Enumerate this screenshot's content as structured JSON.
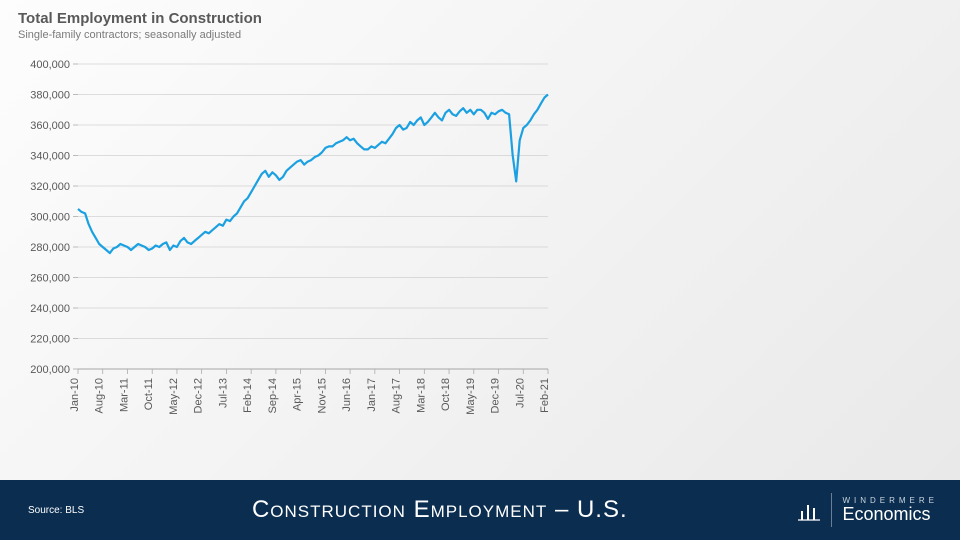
{
  "header": {
    "title": "Total Employment in Construction",
    "subtitle": "Single-family contractors; seasonally adjusted"
  },
  "footer": {
    "source": "Source: BLS",
    "title": "Construction Employment – U.S.",
    "brand_small": "WINDERMERE",
    "brand_big": "Economics"
  },
  "chart": {
    "type": "line",
    "line_color": "#1ba0e1",
    "line_width": 2.2,
    "background_color": "transparent",
    "grid_color": "#bfbfbf",
    "axis_color": "#a6a6a6",
    "label_color": "#595959",
    "label_fontsize": 11,
    "ylim": [
      200000,
      400000
    ],
    "ytick_step": 20000,
    "y_ticks": [
      "200,000",
      "220,000",
      "240,000",
      "260,000",
      "280,000",
      "300,000",
      "320,000",
      "340,000",
      "360,000",
      "380,000",
      "400,000"
    ],
    "x_labels": [
      "Jan-10",
      "Aug-10",
      "Mar-11",
      "Oct-11",
      "May-12",
      "Dec-12",
      "Jul-13",
      "Feb-14",
      "Sep-14",
      "Apr-15",
      "Nov-15",
      "Jun-16",
      "Jan-17",
      "Aug-17",
      "Mar-18",
      "Oct-18",
      "May-19",
      "Dec-19",
      "Jul-20",
      "Feb-21"
    ],
    "x_domain": [
      0,
      133
    ],
    "series": [
      {
        "x": 0,
        "y": 305000
      },
      {
        "x": 1,
        "y": 303000
      },
      {
        "x": 2,
        "y": 302000
      },
      {
        "x": 3,
        "y": 295000
      },
      {
        "x": 4,
        "y": 290000
      },
      {
        "x": 5,
        "y": 286000
      },
      {
        "x": 6,
        "y": 282000
      },
      {
        "x": 7,
        "y": 280000
      },
      {
        "x": 8,
        "y": 278000
      },
      {
        "x": 9,
        "y": 276000
      },
      {
        "x": 10,
        "y": 279000
      },
      {
        "x": 11,
        "y": 280000
      },
      {
        "x": 12,
        "y": 282000
      },
      {
        "x": 13,
        "y": 281000
      },
      {
        "x": 14,
        "y": 280000
      },
      {
        "x": 15,
        "y": 278000
      },
      {
        "x": 16,
        "y": 280000
      },
      {
        "x": 17,
        "y": 282000
      },
      {
        "x": 18,
        "y": 281000
      },
      {
        "x": 19,
        "y": 280000
      },
      {
        "x": 20,
        "y": 278000
      },
      {
        "x": 21,
        "y": 279000
      },
      {
        "x": 22,
        "y": 281000
      },
      {
        "x": 23,
        "y": 280000
      },
      {
        "x": 24,
        "y": 282000
      },
      {
        "x": 25,
        "y": 283000
      },
      {
        "x": 26,
        "y": 278000
      },
      {
        "x": 27,
        "y": 281000
      },
      {
        "x": 28,
        "y": 280000
      },
      {
        "x": 29,
        "y": 284000
      },
      {
        "x": 30,
        "y": 286000
      },
      {
        "x": 31,
        "y": 283000
      },
      {
        "x": 32,
        "y": 282000
      },
      {
        "x": 33,
        "y": 284000
      },
      {
        "x": 34,
        "y": 286000
      },
      {
        "x": 35,
        "y": 288000
      },
      {
        "x": 36,
        "y": 290000
      },
      {
        "x": 37,
        "y": 289000
      },
      {
        "x": 38,
        "y": 291000
      },
      {
        "x": 39,
        "y": 293000
      },
      {
        "x": 40,
        "y": 295000
      },
      {
        "x": 41,
        "y": 294000
      },
      {
        "x": 42,
        "y": 298000
      },
      {
        "x": 43,
        "y": 297000
      },
      {
        "x": 44,
        "y": 300000
      },
      {
        "x": 45,
        "y": 302000
      },
      {
        "x": 46,
        "y": 306000
      },
      {
        "x": 47,
        "y": 310000
      },
      {
        "x": 48,
        "y": 312000
      },
      {
        "x": 49,
        "y": 316000
      },
      {
        "x": 50,
        "y": 320000
      },
      {
        "x": 51,
        "y": 324000
      },
      {
        "x": 52,
        "y": 328000
      },
      {
        "x": 53,
        "y": 330000
      },
      {
        "x": 54,
        "y": 326000
      },
      {
        "x": 55,
        "y": 329000
      },
      {
        "x": 56,
        "y": 327000
      },
      {
        "x": 57,
        "y": 324000
      },
      {
        "x": 58,
        "y": 326000
      },
      {
        "x": 59,
        "y": 330000
      },
      {
        "x": 60,
        "y": 332000
      },
      {
        "x": 61,
        "y": 334000
      },
      {
        "x": 62,
        "y": 336000
      },
      {
        "x": 63,
        "y": 337000
      },
      {
        "x": 64,
        "y": 334000
      },
      {
        "x": 65,
        "y": 336000
      },
      {
        "x": 66,
        "y": 337000
      },
      {
        "x": 67,
        "y": 339000
      },
      {
        "x": 68,
        "y": 340000
      },
      {
        "x": 69,
        "y": 342000
      },
      {
        "x": 70,
        "y": 345000
      },
      {
        "x": 71,
        "y": 346000
      },
      {
        "x": 72,
        "y": 346000
      },
      {
        "x": 73,
        "y": 348000
      },
      {
        "x": 74,
        "y": 349000
      },
      {
        "x": 75,
        "y": 350000
      },
      {
        "x": 76,
        "y": 352000
      },
      {
        "x": 77,
        "y": 350000
      },
      {
        "x": 78,
        "y": 351000
      },
      {
        "x": 79,
        "y": 348000
      },
      {
        "x": 80,
        "y": 346000
      },
      {
        "x": 81,
        "y": 344000
      },
      {
        "x": 82,
        "y": 344000
      },
      {
        "x": 83,
        "y": 346000
      },
      {
        "x": 84,
        "y": 345000
      },
      {
        "x": 85,
        "y": 347000
      },
      {
        "x": 86,
        "y": 349000
      },
      {
        "x": 87,
        "y": 348000
      },
      {
        "x": 88,
        "y": 351000
      },
      {
        "x": 89,
        "y": 354000
      },
      {
        "x": 90,
        "y": 358000
      },
      {
        "x": 91,
        "y": 360000
      },
      {
        "x": 92,
        "y": 357000
      },
      {
        "x": 93,
        "y": 358000
      },
      {
        "x": 94,
        "y": 362000
      },
      {
        "x": 95,
        "y": 360000
      },
      {
        "x": 96,
        "y": 363000
      },
      {
        "x": 97,
        "y": 365000
      },
      {
        "x": 98,
        "y": 360000
      },
      {
        "x": 99,
        "y": 362000
      },
      {
        "x": 100,
        "y": 365000
      },
      {
        "x": 101,
        "y": 368000
      },
      {
        "x": 102,
        "y": 365000
      },
      {
        "x": 103,
        "y": 363000
      },
      {
        "x": 104,
        "y": 368000
      },
      {
        "x": 105,
        "y": 370000
      },
      {
        "x": 106,
        "y": 367000
      },
      {
        "x": 107,
        "y": 366000
      },
      {
        "x": 108,
        "y": 369000
      },
      {
        "x": 109,
        "y": 371000
      },
      {
        "x": 110,
        "y": 368000
      },
      {
        "x": 111,
        "y": 370000
      },
      {
        "x": 112,
        "y": 367000
      },
      {
        "x": 113,
        "y": 370000
      },
      {
        "x": 114,
        "y": 370000
      },
      {
        "x": 115,
        "y": 368000
      },
      {
        "x": 116,
        "y": 364000
      },
      {
        "x": 117,
        "y": 368000
      },
      {
        "x": 118,
        "y": 367000
      },
      {
        "x": 119,
        "y": 369000
      },
      {
        "x": 120,
        "y": 370000
      },
      {
        "x": 121,
        "y": 368000
      },
      {
        "x": 122,
        "y": 367000
      },
      {
        "x": 123,
        "y": 340000
      },
      {
        "x": 124,
        "y": 323000
      },
      {
        "x": 125,
        "y": 350000
      },
      {
        "x": 126,
        "y": 358000
      },
      {
        "x": 127,
        "y": 360000
      },
      {
        "x": 128,
        "y": 363000
      },
      {
        "x": 129,
        "y": 367000
      },
      {
        "x": 130,
        "y": 370000
      },
      {
        "x": 131,
        "y": 374000
      },
      {
        "x": 132,
        "y": 378000
      },
      {
        "x": 133,
        "y": 380000
      }
    ]
  }
}
